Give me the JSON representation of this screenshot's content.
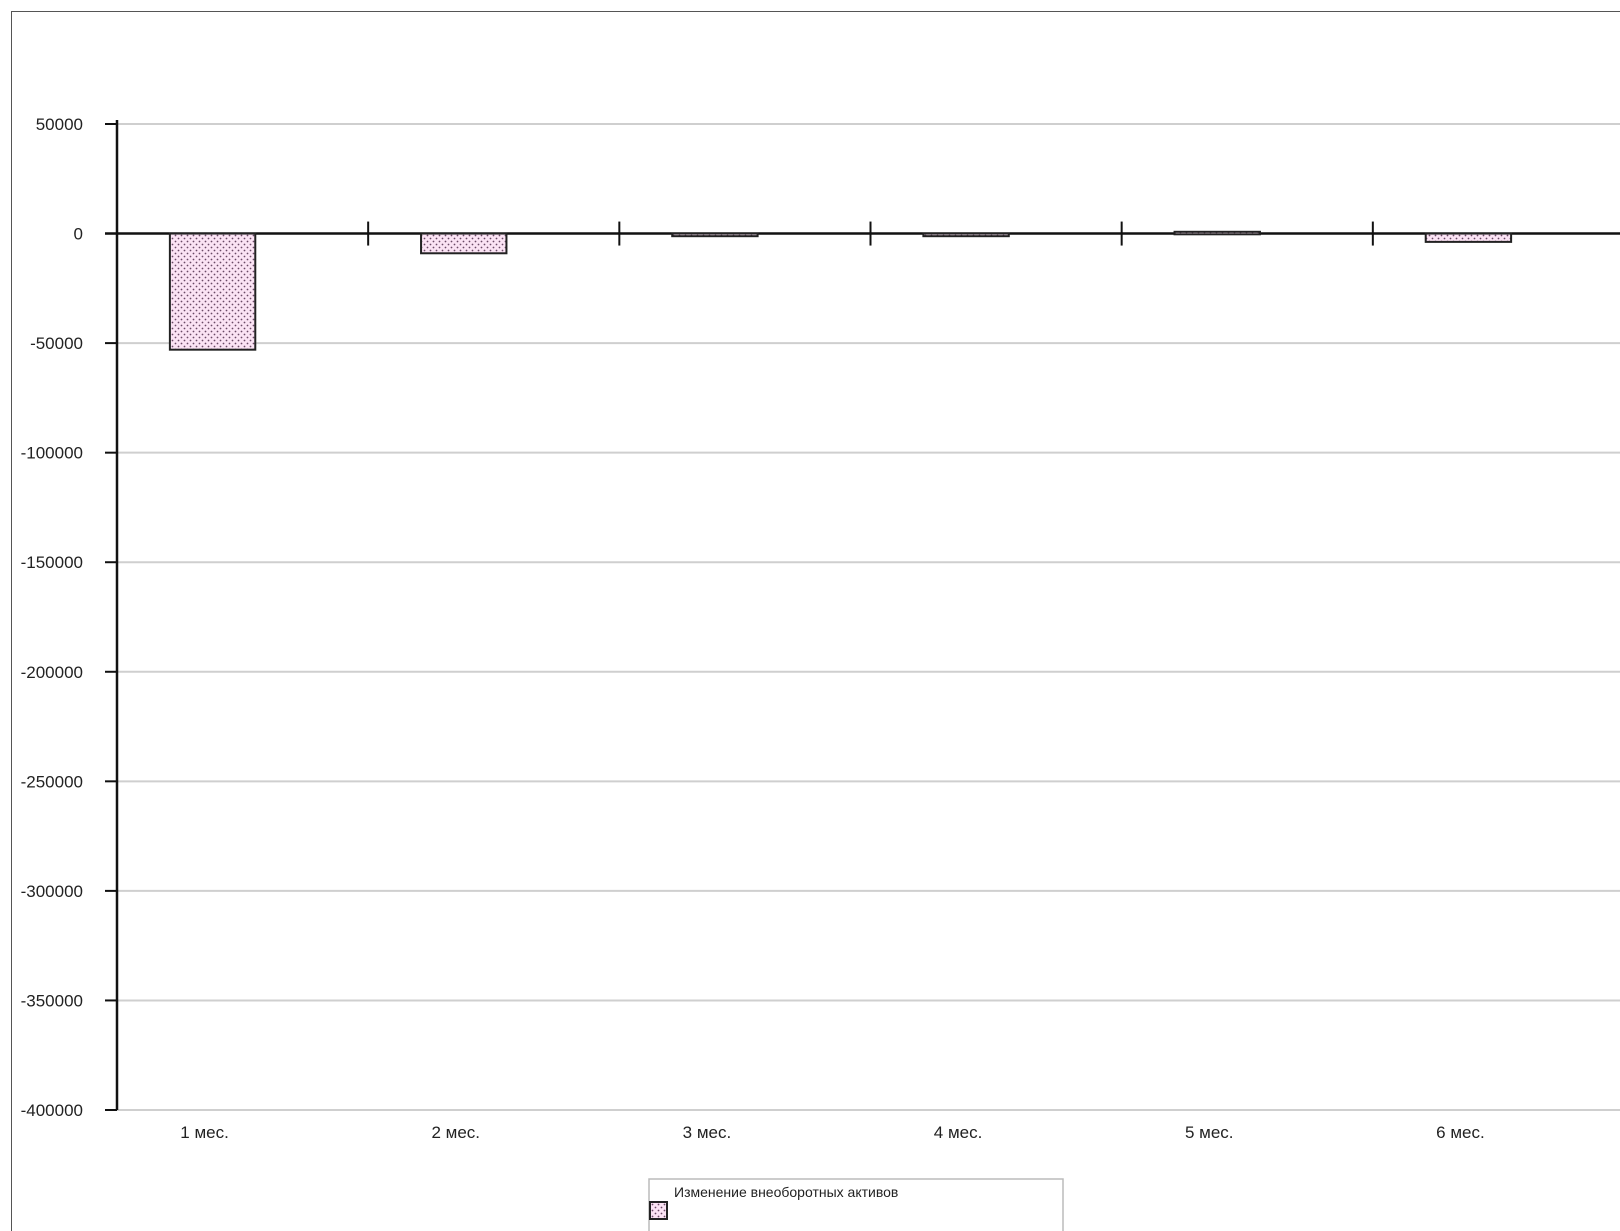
{
  "chart_data": {
    "type": "bar",
    "categories": [
      "1 мес.",
      "2 мес.",
      "3 мес.",
      "4 мес.",
      "5 мес.",
      "6 мес."
    ],
    "series": [
      {
        "name": "Изменение внеоборотных активов",
        "values": [
          -53000,
          -9000,
          -1200,
          -1200,
          800,
          -3800
        ]
      }
    ],
    "ylim": [
      -400000,
      50000
    ],
    "yticks": [
      50000,
      0,
      -50000,
      -100000,
      -150000,
      -200000,
      -250000,
      -300000,
      -350000,
      -400000
    ],
    "grid": true,
    "legend": "bottom",
    "colors": {
      "bar_fill": "#fbe3f4",
      "bar_dots": "#6a4a66",
      "bar_edge": "#222222",
      "grid": "#cfcfcf",
      "axis": "#111111"
    }
  }
}
